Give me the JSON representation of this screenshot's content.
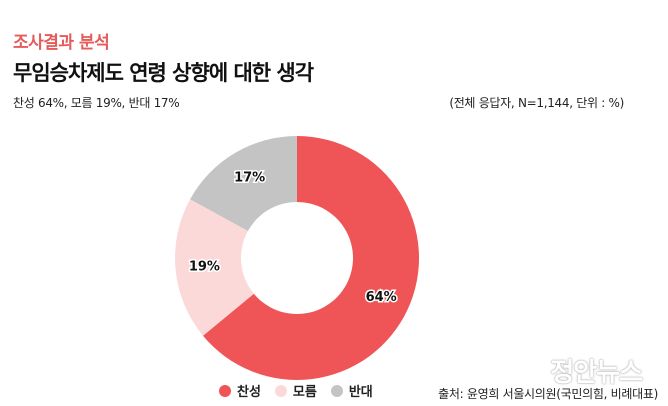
{
  "header": {
    "kicker": "조사결과 분석",
    "title": "무임승차제도 연령 상향에 대한 생각",
    "summary": "찬성 64%, 모름 19%, 반대 17%",
    "note": "(전체 응답자, N=1,144, 단위 : %)"
  },
  "chart_data": {
    "type": "pie",
    "donut": true,
    "categories": [
      "찬성",
      "모름",
      "반대"
    ],
    "values": [
      64,
      19,
      17
    ],
    "labels": [
      "64%",
      "19%",
      "17%"
    ],
    "colors": [
      "#ef5556",
      "#fcd9d9",
      "#c4c4c4"
    ],
    "legend_position": "bottom"
  },
  "legend": {
    "items": [
      {
        "label": "찬성",
        "color": "#ef5556"
      },
      {
        "label": "모름",
        "color": "#fcd9d9"
      },
      {
        "label": "반대",
        "color": "#c4c4c4"
      }
    ]
  },
  "footer": {
    "source": "출처: 윤영희 서울시의원(국민의힘, 비례대표)",
    "watermark": "정안뉴스"
  }
}
